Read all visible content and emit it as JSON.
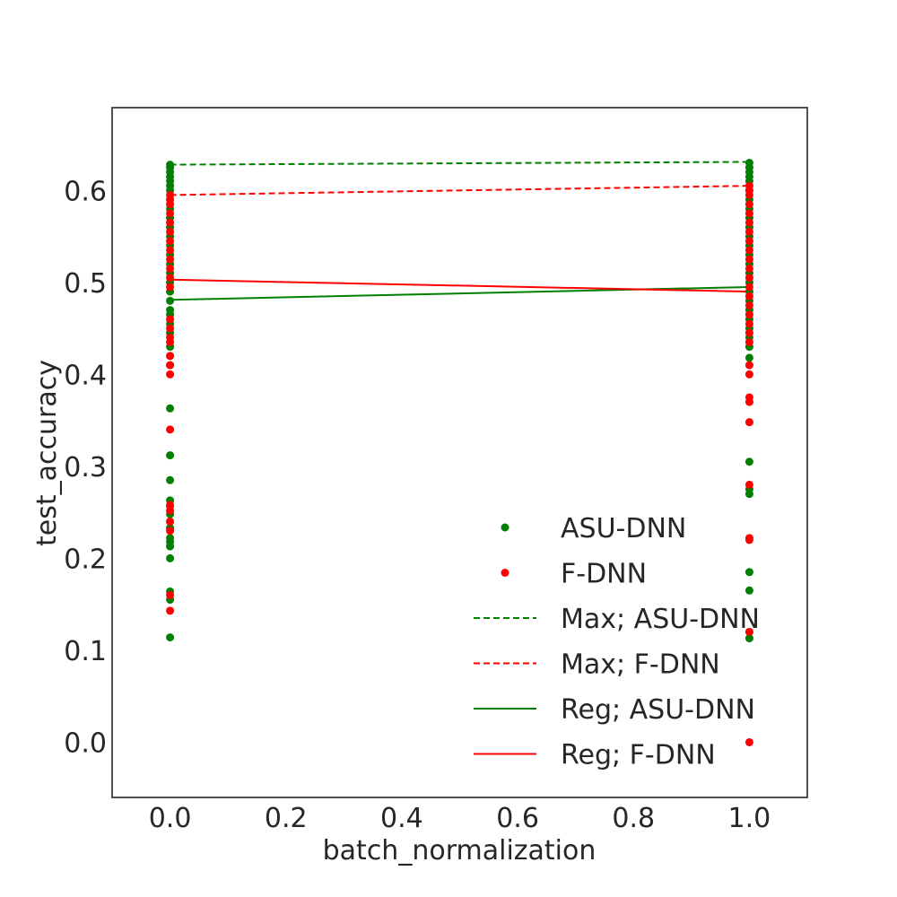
{
  "chart_data": {
    "type": "scatter",
    "xlabel": "batch_normalization",
    "ylabel": "test_accuracy",
    "xlim": [
      -0.1,
      1.1
    ],
    "ylim": [
      -0.06,
      0.69
    ],
    "xticks": [
      "0.0",
      "0.2",
      "0.4",
      "0.6",
      "0.8",
      "1.0"
    ],
    "yticks": [
      "0.0",
      "0.1",
      "0.2",
      "0.3",
      "0.4",
      "0.5",
      "0.6"
    ],
    "grid": false,
    "legend_position": "bottom-right",
    "scatter_series": [
      {
        "name": "ASU-DNN",
        "color": "#008000",
        "points": [
          [
            0,
            0.628
          ],
          [
            0,
            0.625
          ],
          [
            0,
            0.62
          ],
          [
            0,
            0.615
          ],
          [
            0,
            0.61
          ],
          [
            0,
            0.605
          ],
          [
            0,
            0.6
          ],
          [
            0,
            0.59
          ],
          [
            0,
            0.58
          ],
          [
            0,
            0.57
          ],
          [
            0,
            0.56
          ],
          [
            0,
            0.55
          ],
          [
            0,
            0.54
          ],
          [
            0,
            0.53
          ],
          [
            0,
            0.52
          ],
          [
            0,
            0.51
          ],
          [
            0,
            0.5
          ],
          [
            0,
            0.49
          ],
          [
            0,
            0.48
          ],
          [
            0,
            0.47
          ],
          [
            0,
            0.465
          ],
          [
            0,
            0.455
          ],
          [
            0,
            0.445
          ],
          [
            0,
            0.43
          ],
          [
            0,
            0.42
          ],
          [
            0,
            0.41
          ],
          [
            0,
            0.363
          ],
          [
            0,
            0.312
          ],
          [
            0,
            0.285
          ],
          [
            0,
            0.263
          ],
          [
            0,
            0.257
          ],
          [
            0,
            0.248
          ],
          [
            0,
            0.24
          ],
          [
            0,
            0.233
          ],
          [
            0,
            0.222
          ],
          [
            0,
            0.218
          ],
          [
            0,
            0.213
          ],
          [
            0,
            0.2
          ],
          [
            0,
            0.164
          ],
          [
            0,
            0.155
          ],
          [
            0,
            0.114
          ],
          [
            1,
            0.63
          ],
          [
            1,
            0.625
          ],
          [
            1,
            0.62
          ],
          [
            1,
            0.615
          ],
          [
            1,
            0.61
          ],
          [
            1,
            0.6
          ],
          [
            1,
            0.59
          ],
          [
            1,
            0.58
          ],
          [
            1,
            0.57
          ],
          [
            1,
            0.56
          ],
          [
            1,
            0.55
          ],
          [
            1,
            0.54
          ],
          [
            1,
            0.53
          ],
          [
            1,
            0.52
          ],
          [
            1,
            0.51
          ],
          [
            1,
            0.5
          ],
          [
            1,
            0.49
          ],
          [
            1,
            0.48
          ],
          [
            1,
            0.47
          ],
          [
            1,
            0.46
          ],
          [
            1,
            0.45
          ],
          [
            1,
            0.44
          ],
          [
            1,
            0.43
          ],
          [
            1,
            0.418
          ],
          [
            1,
            0.305
          ],
          [
            1,
            0.275
          ],
          [
            1,
            0.27
          ],
          [
            1,
            0.185
          ],
          [
            1,
            0.165
          ],
          [
            1,
            0.12
          ],
          [
            1,
            0.113
          ]
        ]
      },
      {
        "name": "F-DNN",
        "color": "#ff0000",
        "points": [
          [
            0,
            0.595
          ],
          [
            0,
            0.59
          ],
          [
            0,
            0.585
          ],
          [
            0,
            0.575
          ],
          [
            0,
            0.565
          ],
          [
            0,
            0.555
          ],
          [
            0,
            0.545
          ],
          [
            0,
            0.535
          ],
          [
            0,
            0.525
          ],
          [
            0,
            0.515
          ],
          [
            0,
            0.505
          ],
          [
            0,
            0.495
          ],
          [
            0,
            0.46
          ],
          [
            0,
            0.45
          ],
          [
            0,
            0.44
          ],
          [
            0,
            0.435
          ],
          [
            0,
            0.42
          ],
          [
            0,
            0.41
          ],
          [
            0,
            0.4
          ],
          [
            0,
            0.34
          ],
          [
            0,
            0.258
          ],
          [
            0,
            0.252
          ],
          [
            0,
            0.24
          ],
          [
            0,
            0.23
          ],
          [
            0,
            0.16
          ],
          [
            0,
            0.143
          ],
          [
            1,
            0.605
          ],
          [
            1,
            0.6
          ],
          [
            1,
            0.595
          ],
          [
            1,
            0.585
          ],
          [
            1,
            0.575
          ],
          [
            1,
            0.565
          ],
          [
            1,
            0.555
          ],
          [
            1,
            0.545
          ],
          [
            1,
            0.535
          ],
          [
            1,
            0.525
          ],
          [
            1,
            0.515
          ],
          [
            1,
            0.505
          ],
          [
            1,
            0.495
          ],
          [
            1,
            0.485
          ],
          [
            1,
            0.475
          ],
          [
            1,
            0.465
          ],
          [
            1,
            0.455
          ],
          [
            1,
            0.445
          ],
          [
            1,
            0.435
          ],
          [
            1,
            0.41
          ],
          [
            1,
            0.4
          ],
          [
            1,
            0.375
          ],
          [
            1,
            0.37
          ],
          [
            1,
            0.348
          ],
          [
            1,
            0.28
          ],
          [
            1,
            0.222
          ],
          [
            1,
            0.22
          ],
          [
            1,
            0.12
          ],
          [
            1,
            0.0
          ]
        ]
      }
    ],
    "line_series": [
      {
        "name": "Max; ASU-DNN",
        "color": "#008000",
        "dash": "dashed",
        "x": [
          0,
          1
        ],
        "y": [
          0.628,
          0.631
        ]
      },
      {
        "name": "Max; F-DNN",
        "color": "#ff0000",
        "dash": "dashed",
        "x": [
          0,
          1
        ],
        "y": [
          0.595,
          0.605
        ]
      },
      {
        "name": "Reg; ASU-DNN",
        "color": "#008000",
        "dash": "solid",
        "x": [
          0,
          1
        ],
        "y": [
          0.481,
          0.495
        ]
      },
      {
        "name": "Reg; F-DNN",
        "color": "#ff0000",
        "dash": "solid",
        "x": [
          0,
          1
        ],
        "y": [
          0.503,
          0.49
        ]
      }
    ],
    "legend": [
      {
        "label": "ASU-DNN",
        "kind": "marker",
        "color": "#008000"
      },
      {
        "label": "F-DNN",
        "kind": "marker",
        "color": "#ff0000"
      },
      {
        "label": "Max; ASU-DNN",
        "kind": "dashed",
        "color": "#008000"
      },
      {
        "label": "Max; F-DNN",
        "kind": "dashed",
        "color": "#ff0000"
      },
      {
        "label": "Reg; ASU-DNN",
        "kind": "solid",
        "color": "#008000"
      },
      {
        "label": "Reg; F-DNN",
        "kind": "solid",
        "color": "#ff0000"
      }
    ]
  }
}
